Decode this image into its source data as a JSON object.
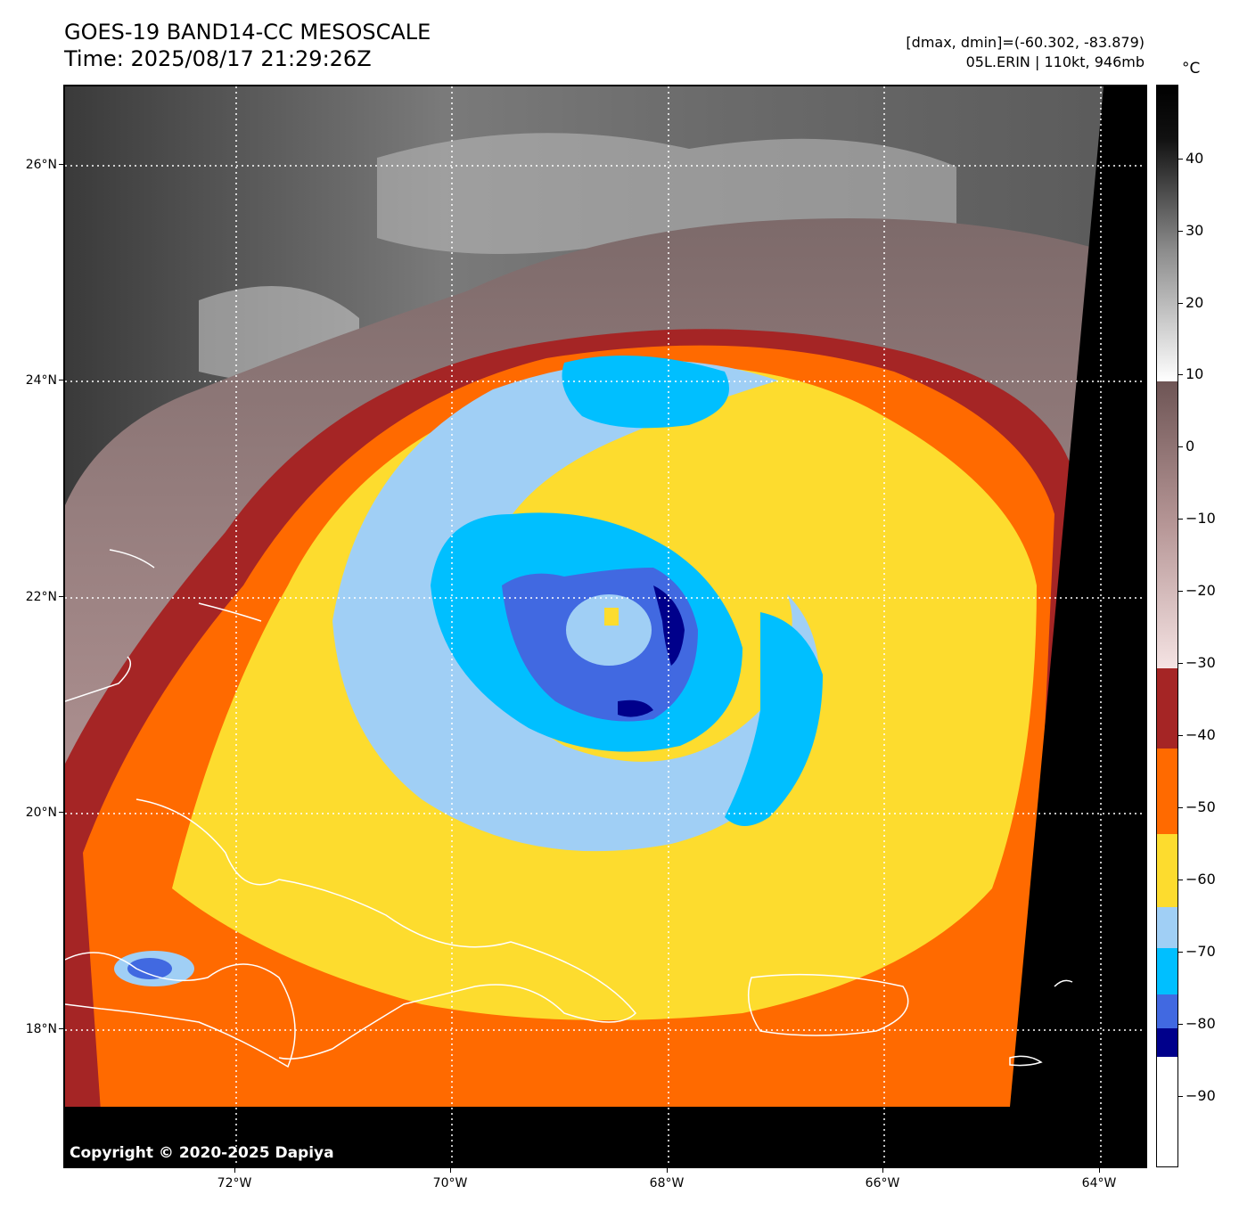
{
  "header": {
    "title_line1": "GOES-19 BAND14-CC MESOSCALE",
    "title_line2": "Time: 2025/08/17 21:29:26Z",
    "meta_line1": "[dmax, dmin]=(-60.302, -83.879)",
    "meta_line2": "05L.ERIN | 110kt, 946mb"
  },
  "map": {
    "copyright": "Copyright © 2020-2025 Dapiya",
    "lat_labels": [
      "26°N",
      "24°N",
      "22°N",
      "20°N",
      "18°N"
    ],
    "lon_labels": [
      "72°W",
      "70°W",
      "68°W",
      "66°W",
      "64°W"
    ]
  },
  "colorbar": {
    "unit": "°C",
    "ticks": [
      "40",
      "30",
      "20",
      "10",
      "0",
      "−10",
      "−20",
      "−30",
      "−40",
      "−50",
      "−60",
      "−70",
      "−80",
      "−90"
    ]
  },
  "colors": {
    "deep_blue": "#00008b",
    "royal_blue": "#4169e1",
    "cyan_blue": "#00bfff",
    "light_blue": "#a0cff5",
    "yellow": "#fddc2e",
    "orange": "#ff6a00",
    "dark_red": "#a52525",
    "pink": "#e8cfcf",
    "mauve": "#8a6a6a",
    "grey": "#6e6e6e",
    "black": "#000000",
    "coast": "#ffffff"
  }
}
